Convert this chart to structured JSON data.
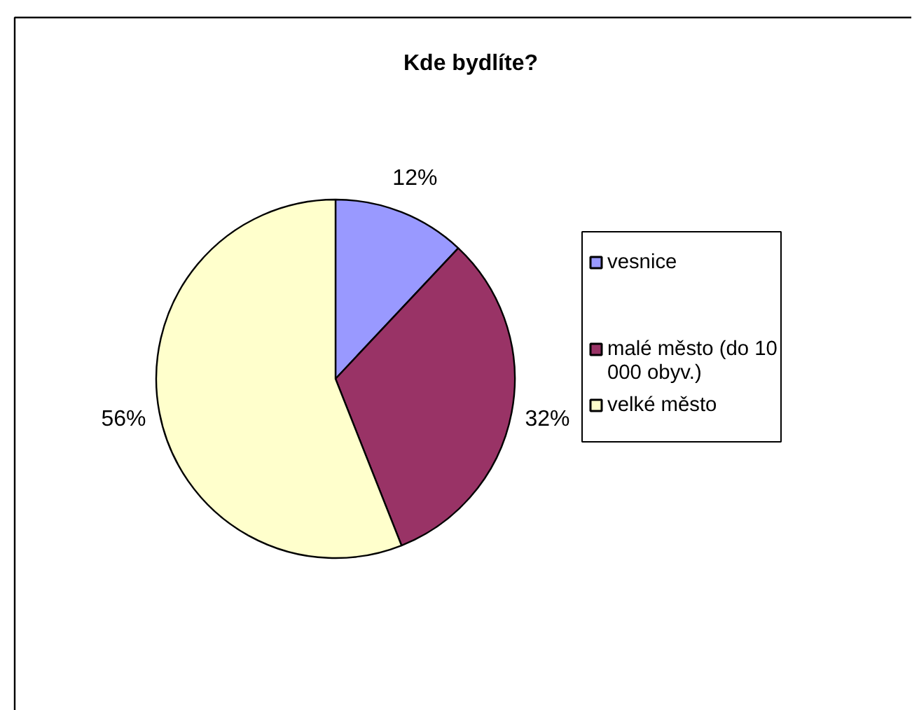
{
  "chart_data": {
    "type": "pie",
    "title": "Kde bydlíte?",
    "categories": [
      "vesnice",
      "malé město (do 10 000 obyv.)",
      "velké město"
    ],
    "values": [
      12,
      32,
      56
    ],
    "colors": [
      "#9999ff",
      "#993366",
      "#ffffcc"
    ],
    "value_labels": [
      "12%",
      "32%",
      "56%"
    ],
    "legend": "right"
  }
}
